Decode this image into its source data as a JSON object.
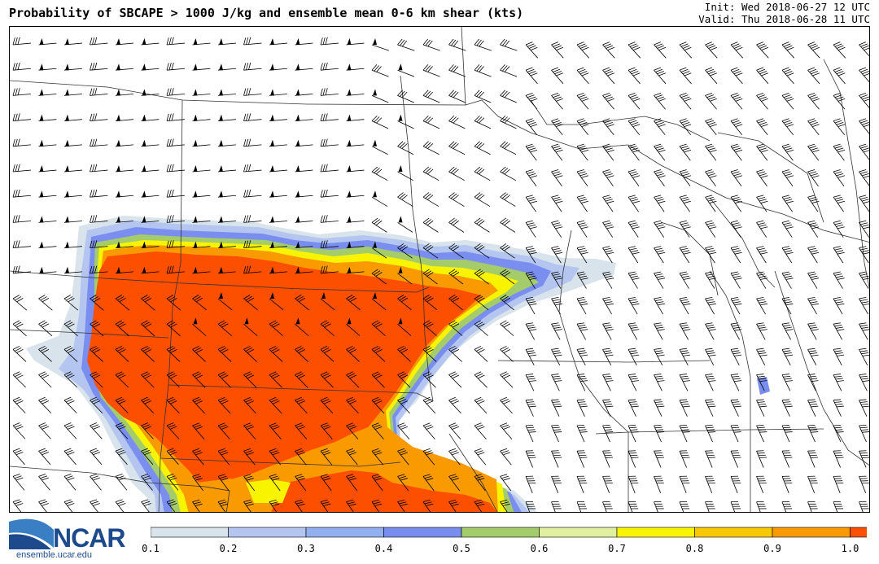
{
  "header": {
    "title": "Probability of SBCAPE > 1000 J/kg and ensemble mean 0-6 km shear (kts)",
    "init": "Init: Wed 2018-06-27 12 UTC",
    "valid": "Valid: Thu 2018-06-28 11 UTC"
  },
  "colorbar": {
    "labels": [
      "0.1",
      "0.2",
      "0.3",
      "0.4",
      "0.5",
      "0.6",
      "0.7",
      "0.8",
      "0.9",
      "1.0"
    ],
    "colors": [
      "#d8e3ec",
      "#b4c6f0",
      "#92aff0",
      "#7a8ef0",
      "#a4cc6a",
      "#e0f0a0",
      "#f8f400",
      "#f8c800",
      "#f89a00",
      "#fc5000"
    ]
  },
  "logo": {
    "name": "NCAR",
    "url": "ensemble.ucar.edu"
  },
  "map_colors": {
    "high": "#fc5000",
    "orange": "#f89a00",
    "yellow": "#f8f400",
    "green": "#a4cc6a",
    "blue": "#7a8ef0",
    "light_blue": "#b4c6f0",
    "grey_blue": "#d8e3ec"
  }
}
